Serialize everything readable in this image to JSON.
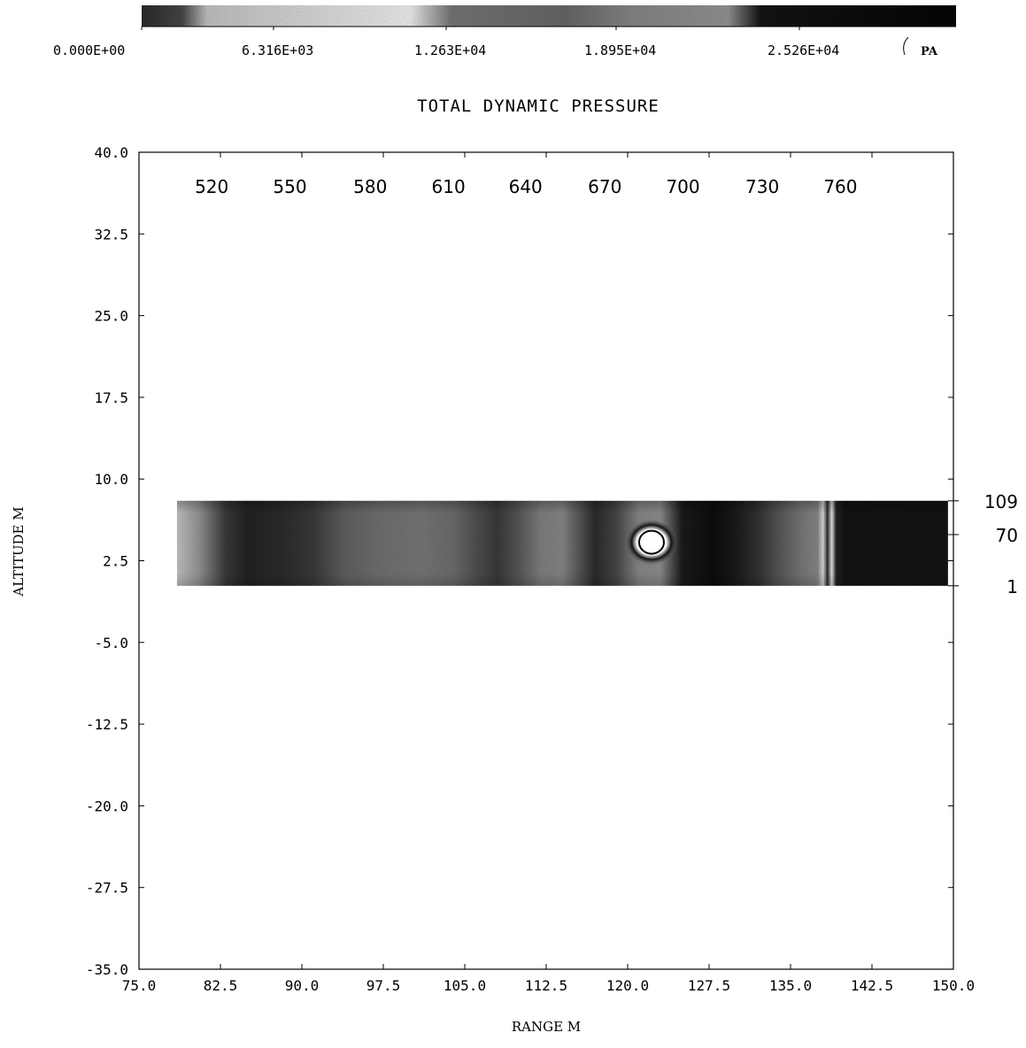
{
  "chart_data": {
    "type": "heatmap",
    "title": "TOTAL DYNAMIC PRESSURE",
    "xlabel": "RANGE M",
    "ylabel": "ALTITUDE M",
    "xlim": [
      75.0,
      150.0
    ],
    "ylim": [
      -35.0,
      40.0
    ],
    "x_ticks": [
      "75.0",
      "82.5",
      "90.0",
      "97.5",
      "105.0",
      "112.5",
      "120.0",
      "127.5",
      "135.0",
      "142.5",
      "150.0"
    ],
    "y_ticks": [
      "40.0",
      "32.5",
      "25.0",
      "17.5",
      "10.0",
      "2.5",
      "-5.0",
      "-12.5",
      "-20.0",
      "-27.5",
      "-35.0"
    ],
    "colorbar": {
      "unit": "PA",
      "ticks": [
        "0.000E+00",
        "6.316E+03",
        "1.263E+04",
        "1.895E+04",
        "2.526E+04"
      ],
      "tick_values": [
        0,
        6316,
        12630,
        18950,
        25260
      ],
      "max": 31580
    },
    "top_labels": [
      "520",
      "550",
      "580",
      "610",
      "640",
      "670",
      "700",
      "730",
      "760"
    ],
    "top_label_x": [
      81.7,
      88.9,
      96.3,
      103.5,
      110.6,
      117.9,
      125.1,
      132.4,
      139.6
    ],
    "right_labels": [
      "109",
      "70",
      "1"
    ],
    "right_label_y": [
      8.0,
      4.9,
      0.2
    ],
    "field": {
      "x_range": [
        78.5,
        149.5
      ],
      "y_range": [
        0.2,
        8.0
      ],
      "pressure_profile": [
        [
          78.5,
          6000
        ],
        [
          80.5,
          12000
        ],
        [
          83.0,
          24000
        ],
        [
          85.0,
          27000
        ],
        [
          88.0,
          26000
        ],
        [
          91.0,
          24000
        ],
        [
          94.0,
          19000
        ],
        [
          97.0,
          17000
        ],
        [
          101.0,
          16000
        ],
        [
          104.0,
          17500
        ],
        [
          106.0,
          21000
        ],
        [
          108.0,
          24000
        ],
        [
          110.0,
          20000
        ],
        [
          112.0,
          15000
        ],
        [
          114.0,
          14000
        ],
        [
          117.0,
          26000
        ],
        [
          119.0,
          22000
        ],
        [
          121.0,
          14000
        ],
        [
          123.0,
          13000
        ],
        [
          125.0,
          28000
        ],
        [
          128.0,
          30000
        ],
        [
          130.0,
          28000
        ],
        [
          132.0,
          25000
        ],
        [
          134.0,
          20000
        ],
        [
          136.0,
          16000
        ],
        [
          137.5,
          14000
        ],
        [
          138.0,
          3000
        ],
        [
          138.4,
          26000
        ],
        [
          138.8,
          1000
        ],
        [
          139.2,
          27000
        ],
        [
          140.0,
          29000
        ],
        [
          149.5,
          29000
        ]
      ],
      "hole": {
        "x": 122.2,
        "y": 4.2,
        "pressure": 0
      }
    }
  }
}
